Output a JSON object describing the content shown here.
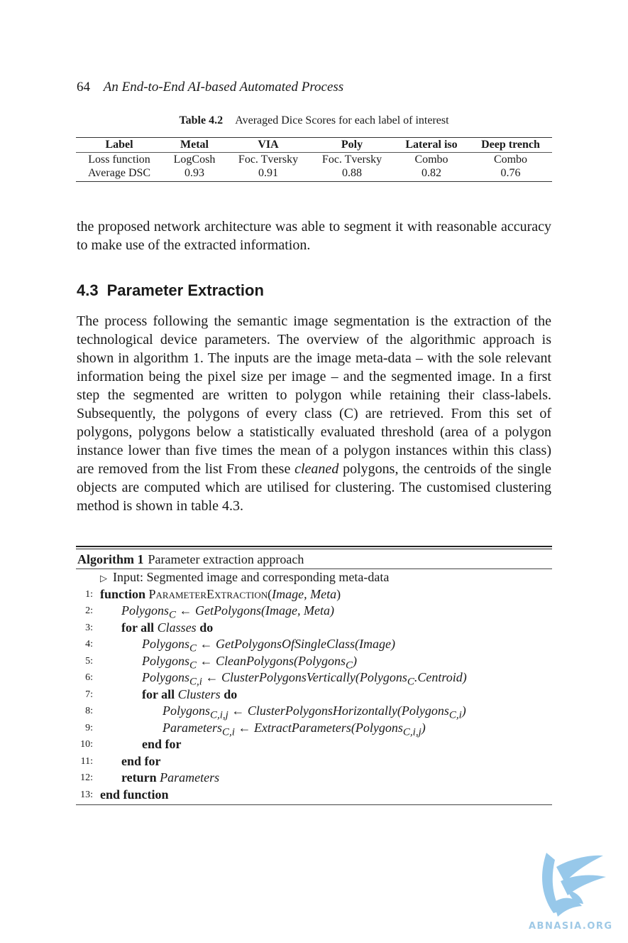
{
  "header": {
    "page_number": "64",
    "book_title": "An End-to-End AI-based Automated Process"
  },
  "table": {
    "caption_label": "Table 4.2",
    "caption_text": "Averaged Dice Scores for each label of interest",
    "columns": [
      "Label",
      "Metal",
      "VIA",
      "Poly",
      "Lateral iso",
      "Deep trench"
    ],
    "rows": [
      [
        "Loss function",
        "LogCosh",
        "Foc. Tversky",
        "Foc. Tversky",
        "Combo",
        "Combo"
      ],
      [
        "Average DSC",
        "0.93",
        "0.91",
        "0.88",
        "0.82",
        "0.76"
      ]
    ]
  },
  "para1": "the proposed network architecture was able to segment it with reasonable accuracy to make use of the extracted information.",
  "section": {
    "number": "4.3",
    "title": "Parameter Extraction"
  },
  "para2": {
    "part1": "The process following the semantic image segmentation is the extraction of the technological device parameters. The overview of the algorithmic approach is shown in algorithm 1. The inputs are the image meta-data – with the sole relevant information being the pixel size per image – and the segmented image. In a first step the segmented are written to polygon while retaining their class-labels. Subsequently, the polygons of every class (C) are retrieved. From this set of polygons, polygons below a statistically evaluated threshold (area of a polygon instance lower than five times the mean of a polygon instances within this class) are removed from the list From these",
    "italic": "cleaned",
    "part2": " polygons, the centroids of the single objects are computed which are utilised for clustering. The customised clustering method is shown in table 4.3."
  },
  "algorithm": {
    "label": "Algorithm 1",
    "title": "Parameter extraction approach",
    "comment_marker": "▷",
    "comment": "Input: Segmented image and corresponding meta-data",
    "lines": [
      {
        "num": "1:",
        "kw": "function",
        "sc": "ParameterExtraction",
        "text": "(",
        "math": "Image, Meta",
        "tail": ")"
      },
      {
        "num": "2:",
        "math": "Polygons",
        "sub": "C",
        "text": " ← ",
        "math2": "GetPolygons(Image, Meta)"
      },
      {
        "num": "3:",
        "kw": "for all",
        "math": "Classes",
        "kw2": "do"
      },
      {
        "num": "4:",
        "math": "Polygons",
        "sub": "C",
        "text": " ← ",
        "math2": "GetPolygonsOfSingleClass(Image)"
      },
      {
        "num": "5:",
        "math": "Polygons",
        "sub": "C",
        "text": " ← ",
        "math2": "CleanPolygons(Polygons",
        "sub2": "C",
        "tail": ")"
      },
      {
        "num": "6:",
        "math": "Polygons",
        "sub": "C,i",
        "text": " ← ",
        "math2": "ClusterPolygonsVertically(Polygons",
        "sub2": "C",
        "tail": ".Centroid)"
      },
      {
        "num": "7:",
        "kw": "for all",
        "math": "Clusters",
        "kw2": "do"
      },
      {
        "num": "8:",
        "math": "Polygons",
        "sub": "C,i,j",
        "text": " ← ",
        "math2": "ClusterPolygonsHorizontally(Polygons",
        "sub2": "C,i",
        "tail": ")"
      },
      {
        "num": "9:",
        "math": "Parameters",
        "sub": "C,i",
        "text": " ← ",
        "math2": "ExtractParameters(Polygons",
        "sub2": "C,i,j",
        "tail": ")"
      },
      {
        "num": "10:",
        "kw": "end for"
      },
      {
        "num": "11:",
        "kw": "end for"
      },
      {
        "num": "12:",
        "kw": "return",
        "math": "Parameters"
      },
      {
        "num": "13:",
        "kw": "end function"
      }
    ]
  },
  "watermark": {
    "text": "ABNASIA.ORG",
    "color": "#8cc3e8"
  }
}
